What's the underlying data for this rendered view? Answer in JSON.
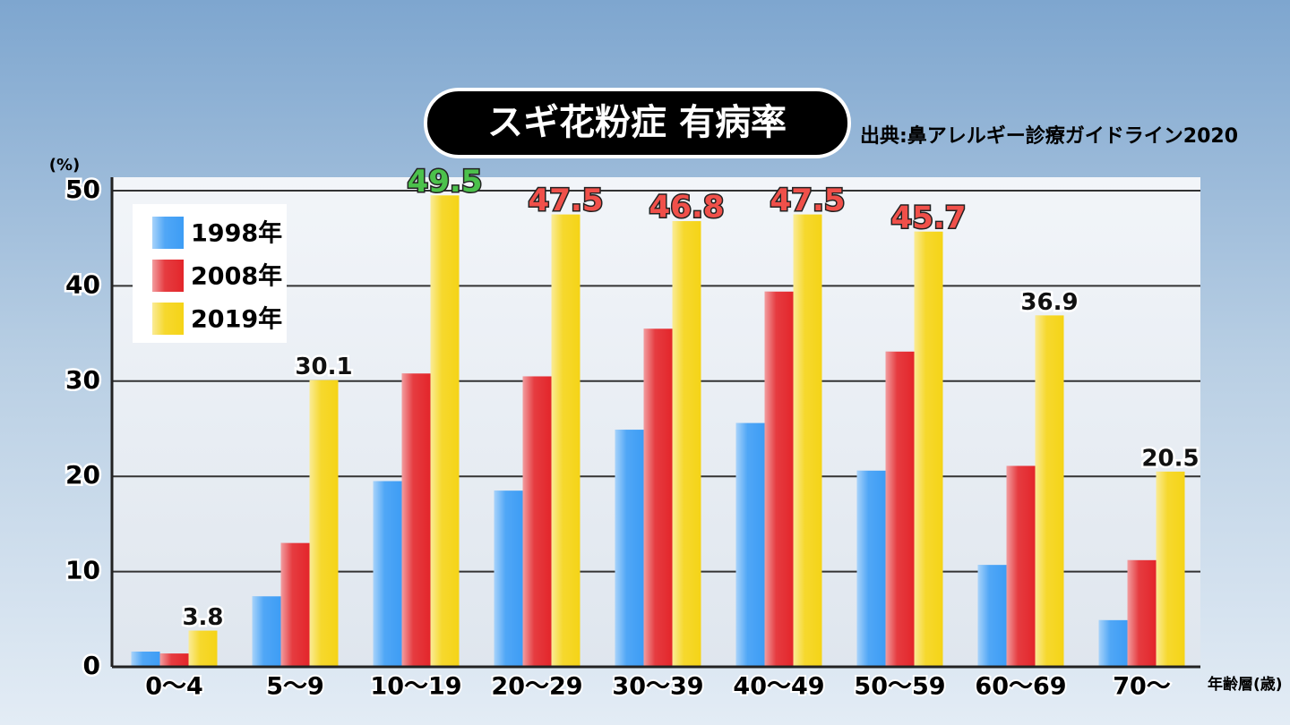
{
  "chart_data": {
    "type": "bar",
    "title": "スギ花粉症 有病率",
    "source": "出典:鼻アレルギー診療ガイドライン2020",
    "y_label": "(%)",
    "x_label": "年齢層(歳)",
    "categories": [
      "0〜4",
      "5〜9",
      "10〜19",
      "20〜29",
      "30〜39",
      "40〜49",
      "50〜59",
      "60〜69",
      "70〜"
    ],
    "series": [
      {
        "name": "1998年",
        "color": "#3d9df5",
        "values": [
          1.6,
          7.4,
          19.5,
          18.5,
          24.9,
          25.6,
          20.6,
          10.7,
          4.9
        ]
      },
      {
        "name": "2008年",
        "color": "#e3262b",
        "values": [
          1.4,
          13.0,
          30.8,
          30.5,
          35.5,
          39.4,
          33.1,
          21.1,
          11.2
        ]
      },
      {
        "name": "2019年",
        "color": "#f5d417",
        "values": [
          3.8,
          30.1,
          49.5,
          47.5,
          46.8,
          47.5,
          45.7,
          36.9,
          20.5
        ],
        "value_label_colors": [
          "#111111",
          "#111111",
          "#4cc14c",
          "#f0504a",
          "#f0504a",
          "#f0504a",
          "#f0504a",
          "#111111",
          "#111111"
        ]
      }
    ],
    "ylim": [
      0,
      50
    ],
    "yticks": [
      0,
      10,
      20,
      30,
      40,
      50
    ],
    "grid": true,
    "legend": "upper left"
  }
}
